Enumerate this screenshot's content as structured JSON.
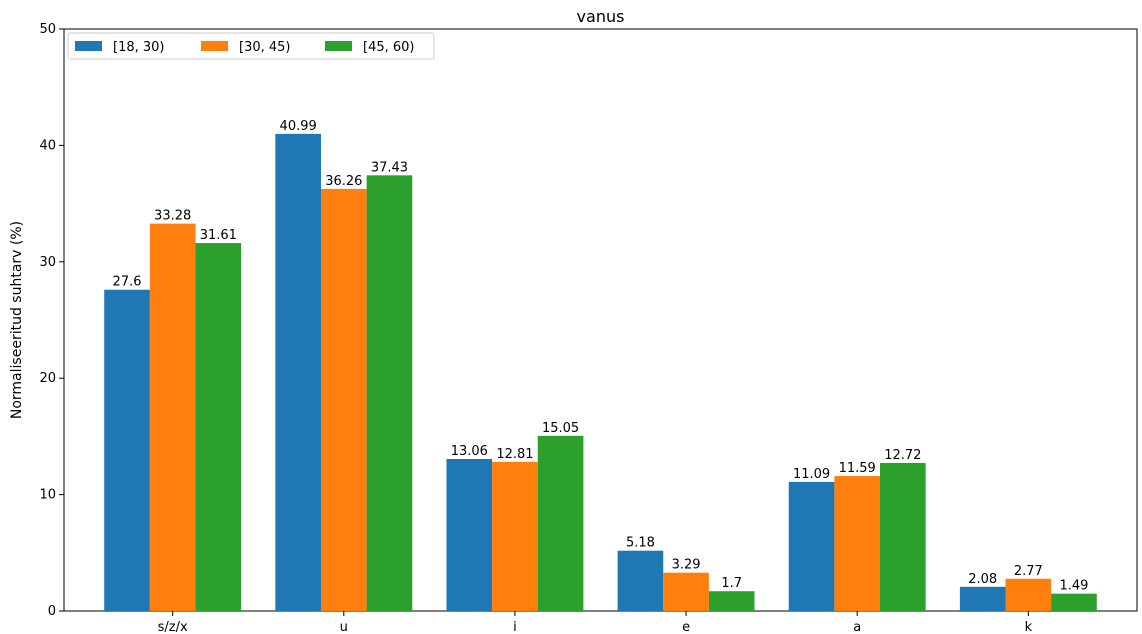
{
  "chart_data": {
    "type": "bar",
    "title": "vanus",
    "xlabel": "",
    "ylabel": "Normaliseeritud suhtarv (%)",
    "ylim": [
      0,
      50
    ],
    "yticks": [
      0,
      10,
      20,
      30,
      40,
      50
    ],
    "categories": [
      "s/z/x",
      "u",
      "i",
      "e",
      "a",
      "k"
    ],
    "series": [
      {
        "name": "[18, 30)",
        "color": "#1f77b4",
        "values": [
          27.6,
          40.99,
          13.06,
          5.18,
          11.09,
          2.08
        ],
        "labels": [
          "27.6",
          "40.99",
          "13.06",
          "5.18",
          "11.09",
          "2.08"
        ]
      },
      {
        "name": "[30, 45)",
        "color": "#ff7f0e",
        "values": [
          33.28,
          36.26,
          12.81,
          3.29,
          11.59,
          2.77
        ],
        "labels": [
          "33.28",
          "36.26",
          "12.81",
          "3.29",
          "11.59",
          "2.77"
        ]
      },
      {
        "name": "[45, 60)",
        "color": "#2ca02c",
        "values": [
          31.61,
          37.43,
          15.05,
          1.7,
          12.72,
          1.49
        ],
        "labels": [
          "31.61",
          "37.43",
          "15.05",
          "1.7",
          "12.72",
          "1.49"
        ]
      }
    ],
    "grid": false,
    "legend_position": "top-left",
    "legend_columns": 3
  }
}
